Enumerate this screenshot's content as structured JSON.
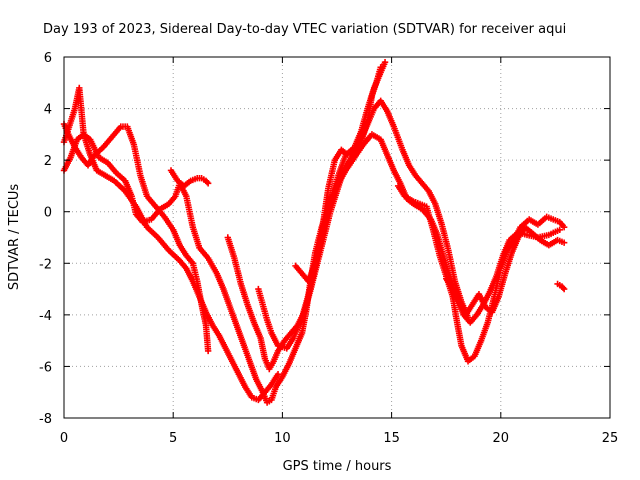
{
  "chart_data": {
    "type": "scatter",
    "title": "Day 193 of 2023, Sidereal Day-to-day VTEC variation (SDTVAR) for receiver aqui",
    "xlabel": "GPS time / hours",
    "ylabel": "SDTVAR / TECUs",
    "xlim": [
      0,
      25
    ],
    "ylim": [
      -8,
      6
    ],
    "xticks": [
      0,
      5,
      10,
      15,
      20,
      25
    ],
    "yticks": [
      -8,
      -6,
      -4,
      -2,
      0,
      2,
      4,
      6
    ],
    "grid": true,
    "marker": "plus",
    "color": "#ff0000",
    "series": [
      {
        "points": [
          [
            0.0,
            1.6
          ],
          [
            0.3,
            2.1
          ],
          [
            0.6,
            2.8
          ],
          [
            0.9,
            3.0
          ],
          [
            1.2,
            2.8
          ],
          [
            1.6,
            2.1
          ],
          [
            2.0,
            1.9
          ],
          [
            2.4,
            1.5
          ],
          [
            2.8,
            1.2
          ],
          [
            3.1,
            0.6
          ],
          [
            3.3,
            -0.1
          ],
          [
            3.6,
            -0.4
          ],
          [
            4.0,
            -0.3
          ],
          [
            4.4,
            0.1
          ],
          [
            4.8,
            0.3
          ],
          [
            5.1,
            0.6
          ],
          [
            5.3,
            1.1
          ],
          [
            5.6,
            0.6
          ],
          [
            5.9,
            -0.6
          ],
          [
            6.2,
            -1.4
          ],
          [
            6.6,
            -1.8
          ],
          [
            7.0,
            -2.4
          ],
          [
            7.3,
            -3.0
          ],
          [
            7.6,
            -3.7
          ],
          [
            7.9,
            -4.4
          ],
          [
            8.2,
            -5.1
          ],
          [
            8.5,
            -5.8
          ],
          [
            8.8,
            -6.5
          ],
          [
            9.1,
            -7.0
          ],
          [
            9.3,
            -7.4
          ],
          [
            9.5,
            -7.3
          ],
          [
            9.7,
            -6.8
          ],
          [
            10.0,
            -6.4
          ],
          [
            10.3,
            -5.9
          ],
          [
            10.6,
            -5.3
          ],
          [
            10.9,
            -4.7
          ],
          [
            11.1,
            -3.8
          ],
          [
            11.3,
            -2.6
          ],
          [
            11.5,
            -1.6
          ],
          [
            11.8,
            -0.6
          ],
          [
            12.1,
            0.2
          ],
          [
            12.5,
            1.0
          ],
          [
            12.9,
            1.6
          ],
          [
            13.3,
            2.1
          ],
          [
            13.7,
            2.6
          ],
          [
            14.1,
            3.0
          ],
          [
            14.5,
            2.8
          ],
          [
            14.8,
            2.2
          ],
          [
            15.1,
            1.6
          ],
          [
            15.4,
            1.1
          ],
          [
            15.7,
            0.5
          ],
          [
            16.0,
            0.3
          ],
          [
            16.4,
            0.1
          ],
          [
            16.8,
            -0.3
          ],
          [
            17.1,
            -0.9
          ],
          [
            17.4,
            -1.8
          ],
          [
            17.7,
            -2.6
          ],
          [
            18.0,
            -3.4
          ],
          [
            18.3,
            -4.0
          ],
          [
            18.6,
            -4.3
          ],
          [
            18.9,
            -4.0
          ],
          [
            19.2,
            -3.6
          ],
          [
            19.5,
            -3.1
          ],
          [
            19.8,
            -2.5
          ],
          [
            20.1,
            -1.7
          ],
          [
            20.4,
            -1.1
          ],
          [
            20.8,
            -0.8
          ],
          [
            21.2,
            -0.9
          ],
          [
            21.7,
            -1.0
          ],
          [
            22.2,
            -0.9
          ],
          [
            22.7,
            -0.7
          ]
        ]
      },
      {
        "points": [
          [
            0.0,
            3.4
          ],
          [
            0.2,
            3.0
          ],
          [
            0.5,
            2.5
          ],
          [
            0.8,
            2.1
          ],
          [
            1.1,
            1.8
          ],
          [
            1.4,
            2.2
          ],
          [
            1.8,
            2.5
          ],
          [
            2.2,
            2.9
          ],
          [
            2.6,
            3.3
          ],
          [
            2.9,
            3.3
          ],
          [
            3.2,
            2.6
          ],
          [
            3.5,
            1.4
          ],
          [
            3.8,
            0.6
          ],
          [
            4.2,
            0.2
          ],
          [
            4.6,
            -0.2
          ],
          [
            5.0,
            -0.7
          ],
          [
            5.3,
            -1.3
          ],
          [
            5.6,
            -1.7
          ],
          [
            5.9,
            -2.0
          ],
          [
            6.1,
            -2.7
          ],
          [
            6.3,
            -3.6
          ],
          [
            6.5,
            -4.4
          ],
          [
            6.6,
            -5.4
          ]
        ]
      },
      {
        "points": [
          [
            4.9,
            1.6
          ],
          [
            5.2,
            1.2
          ],
          [
            5.5,
            1.0
          ],
          [
            5.8,
            1.2
          ],
          [
            6.1,
            1.3
          ],
          [
            6.3,
            1.3
          ],
          [
            6.5,
            1.2
          ],
          [
            6.6,
            1.1
          ]
        ]
      },
      {
        "points": [
          [
            0.0,
            2.7
          ],
          [
            0.2,
            3.2
          ],
          [
            0.5,
            4.0
          ],
          [
            0.7,
            4.8
          ],
          [
            0.9,
            3.0
          ],
          [
            1.2,
            2.2
          ],
          [
            1.5,
            1.6
          ],
          [
            1.9,
            1.4
          ],
          [
            2.3,
            1.2
          ],
          [
            2.8,
            0.8
          ],
          [
            3.3,
            0.2
          ],
          [
            3.8,
            -0.6
          ],
          [
            4.3,
            -1.0
          ],
          [
            4.8,
            -1.5
          ],
          [
            5.3,
            -1.9
          ],
          [
            5.6,
            -2.2
          ],
          [
            5.9,
            -2.7
          ],
          [
            6.2,
            -3.3
          ],
          [
            6.5,
            -3.9
          ],
          [
            6.8,
            -4.4
          ],
          [
            7.1,
            -4.8
          ],
          [
            7.4,
            -5.3
          ],
          [
            7.7,
            -5.8
          ],
          [
            8.0,
            -6.3
          ],
          [
            8.3,
            -6.8
          ],
          [
            8.6,
            -7.2
          ],
          [
            8.9,
            -7.3
          ],
          [
            9.2,
            -7.0
          ],
          [
            9.5,
            -6.7
          ],
          [
            9.8,
            -6.3
          ]
        ]
      },
      {
        "points": [
          [
            7.5,
            -1.0
          ],
          [
            7.8,
            -1.8
          ],
          [
            8.1,
            -2.8
          ],
          [
            8.4,
            -3.6
          ],
          [
            8.7,
            -4.3
          ],
          [
            9.0,
            -4.9
          ],
          [
            9.2,
            -5.7
          ],
          [
            9.4,
            -6.1
          ],
          [
            9.6,
            -5.8
          ],
          [
            9.8,
            -5.4
          ],
          [
            10.1,
            -5.0
          ],
          [
            10.4,
            -4.7
          ],
          [
            10.7,
            -4.4
          ],
          [
            11.0,
            -3.9
          ],
          [
            11.3,
            -3.0
          ],
          [
            11.6,
            -2.0
          ],
          [
            11.9,
            -1.0
          ],
          [
            12.2,
            0.0
          ],
          [
            12.5,
            0.8
          ],
          [
            12.8,
            1.6
          ],
          [
            13.1,
            2.0
          ],
          [
            13.4,
            2.4
          ],
          [
            13.7,
            3.0
          ],
          [
            14.0,
            3.6
          ],
          [
            14.2,
            4.0
          ],
          [
            14.5,
            4.3
          ],
          [
            14.8,
            3.9
          ],
          [
            15.1,
            3.3
          ],
          [
            15.5,
            2.4
          ],
          [
            15.8,
            1.8
          ],
          [
            16.1,
            1.4
          ],
          [
            16.4,
            1.1
          ],
          [
            16.7,
            0.8
          ],
          [
            17.0,
            0.3
          ],
          [
            17.3,
            -0.5
          ],
          [
            17.6,
            -1.5
          ],
          [
            17.9,
            -2.7
          ],
          [
            18.2,
            -3.5
          ],
          [
            18.5,
            -4.1
          ]
        ]
      },
      {
        "points": [
          [
            8.9,
            -3.0
          ],
          [
            9.1,
            -3.6
          ],
          [
            9.3,
            -4.2
          ],
          [
            9.5,
            -4.7
          ],
          [
            9.8,
            -5.2
          ],
          [
            10.2,
            -5.3
          ],
          [
            10.5,
            -4.9
          ],
          [
            10.9,
            -4.1
          ],
          [
            11.3,
            -2.9
          ],
          [
            11.6,
            -1.8
          ],
          [
            11.9,
            -0.7
          ],
          [
            12.2,
            0.5
          ],
          [
            12.6,
            1.5
          ],
          [
            12.9,
            2.2
          ],
          [
            13.3,
            2.5
          ],
          [
            13.6,
            3.1
          ],
          [
            13.9,
            4.0
          ],
          [
            14.2,
            4.8
          ],
          [
            14.5,
            5.4
          ],
          [
            14.7,
            5.8
          ]
        ]
      },
      {
        "points": [
          [
            10.6,
            -2.1
          ],
          [
            10.9,
            -2.4
          ],
          [
            11.2,
            -2.7
          ],
          [
            11.5,
            -2.0
          ],
          [
            11.8,
            -0.8
          ],
          [
            12.1,
            0.9
          ],
          [
            12.4,
            2.0
          ],
          [
            12.7,
            2.4
          ],
          [
            13.0,
            2.2
          ],
          [
            13.3,
            2.3
          ],
          [
            13.6,
            2.7
          ],
          [
            13.9,
            3.5
          ],
          [
            14.1,
            4.5
          ],
          [
            14.3,
            5.0
          ],
          [
            14.5,
            5.6
          ]
        ]
      },
      {
        "points": [
          [
            15.3,
            1.0
          ],
          [
            15.6,
            0.6
          ],
          [
            16.0,
            0.4
          ],
          [
            16.3,
            0.3
          ],
          [
            16.6,
            0.2
          ],
          [
            16.9,
            -0.7
          ],
          [
            17.2,
            -1.7
          ],
          [
            17.5,
            -2.5
          ],
          [
            17.8,
            -3.3
          ],
          [
            18.0,
            -4.3
          ],
          [
            18.2,
            -5.2
          ],
          [
            18.5,
            -5.8
          ],
          [
            18.8,
            -5.6
          ],
          [
            19.1,
            -5.0
          ],
          [
            19.4,
            -4.3
          ],
          [
            19.7,
            -3.3
          ],
          [
            20.0,
            -2.2
          ],
          [
            20.3,
            -1.5
          ],
          [
            20.6,
            -1.1
          ],
          [
            20.9,
            -0.6
          ],
          [
            21.3,
            -0.3
          ],
          [
            21.7,
            -0.5
          ],
          [
            22.1,
            -0.2
          ],
          [
            22.4,
            -0.3
          ],
          [
            22.7,
            -0.4
          ],
          [
            22.9,
            -0.6
          ]
        ]
      },
      {
        "points": [
          [
            17.5,
            -2.6
          ],
          [
            17.8,
            -3.0
          ],
          [
            18.1,
            -3.5
          ],
          [
            18.4,
            -4.0
          ],
          [
            18.7,
            -3.6
          ],
          [
            19.0,
            -3.2
          ],
          [
            19.3,
            -3.7
          ],
          [
            19.6,
            -3.9
          ],
          [
            19.9,
            -3.3
          ],
          [
            20.2,
            -2.4
          ],
          [
            20.5,
            -1.6
          ],
          [
            20.8,
            -1.0
          ],
          [
            21.1,
            -0.6
          ],
          [
            21.4,
            -0.8
          ],
          [
            21.8,
            -1.1
          ],
          [
            22.2,
            -1.3
          ],
          [
            22.6,
            -1.1
          ],
          [
            22.9,
            -1.2
          ]
        ]
      },
      {
        "points": [
          [
            22.6,
            -2.8
          ],
          [
            22.8,
            -2.9
          ],
          [
            22.9,
            -3.0
          ]
        ]
      }
    ]
  }
}
